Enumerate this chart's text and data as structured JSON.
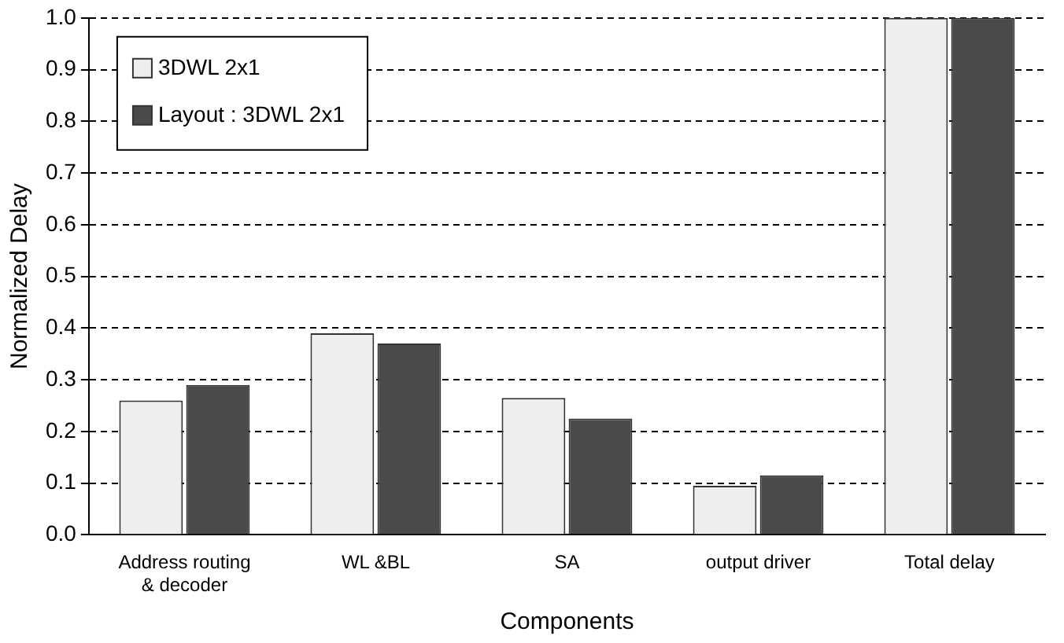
{
  "chart_data": {
    "type": "bar",
    "xlabel": "Components",
    "ylabel": "Normalized Delay",
    "categories": [
      "Address routing & decoder",
      "WL &BL",
      "SA",
      "output driver",
      "Total delay"
    ],
    "series": [
      {
        "name": "3DWL 2x1",
        "color": "#eeeeee",
        "values": [
          0.26,
          0.39,
          0.265,
          0.095,
          1.0
        ]
      },
      {
        "name": "Layout : 3DWL 2x1",
        "color": "#4a4a4a",
        "values": [
          0.29,
          0.37,
          0.225,
          0.115,
          1.0
        ]
      }
    ],
    "ylim": [
      0,
      1
    ],
    "yticks": [
      {
        "value": 0,
        "label": "0.0"
      },
      {
        "value": 0.1,
        "label": "0.1"
      },
      {
        "value": 0.2,
        "label": "0.2"
      },
      {
        "value": 0.3,
        "label": "0.3"
      },
      {
        "value": 0.4,
        "label": "0.4"
      },
      {
        "value": 0.5,
        "label": "0.5"
      },
      {
        "value": 0.6,
        "label": "0.6"
      },
      {
        "value": 0.7,
        "label": "0.7"
      },
      {
        "value": 0.8,
        "label": "0.8"
      },
      {
        "value": 0.9,
        "label": "0.9"
      },
      {
        "value": 1,
        "label": "1.0"
      }
    ],
    "grid": "y",
    "legend": "top left"
  }
}
